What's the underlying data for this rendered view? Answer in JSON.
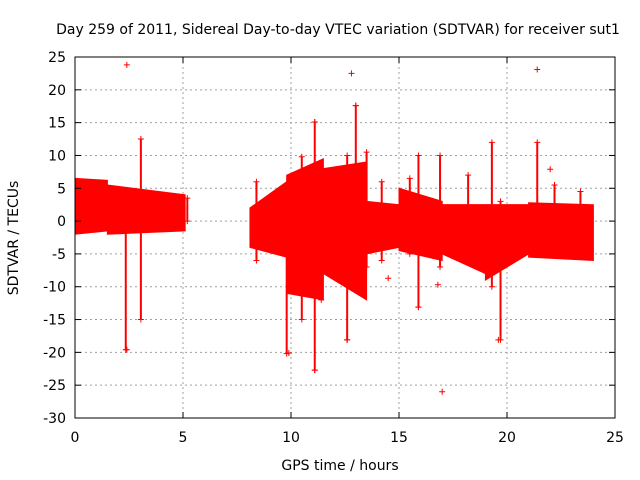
{
  "chart_data": {
    "type": "scatter",
    "title": "Day 259 of 2011, Sidereal Day-to-day VTEC variation (SDTVAR) for receiver sut1",
    "xlabel": "GPS time / hours",
    "ylabel": "SDTVAR / TECUs",
    "xlim": [
      0,
      25
    ],
    "ylim": [
      -30,
      25
    ],
    "xticks": [
      0,
      5,
      10,
      15,
      20,
      25
    ],
    "yticks": [
      25,
      20,
      15,
      10,
      5,
      0,
      -5,
      -10,
      -15,
      -20,
      -25,
      -30
    ],
    "grid": true,
    "marker": "plus",
    "color": "#ff0000",
    "outliers": [
      {
        "x": 2.4,
        "y": 23.8
      },
      {
        "x": 2.4,
        "y": -19.6
      },
      {
        "x": 12.8,
        "y": 22.5
      },
      {
        "x": 13.0,
        "y": 17.6
      },
      {
        "x": 11.1,
        "y": 15.1
      },
      {
        "x": 21.4,
        "y": 23.1
      },
      {
        "x": 17.0,
        "y": -26.0
      },
      {
        "x": 15.9,
        "y": -13.1
      },
      {
        "x": 19.6,
        "y": -18.1
      },
      {
        "x": 11.1,
        "y": -22.7
      },
      {
        "x": 9.9,
        "y": -20.1
      },
      {
        "x": 12.6,
        "y": -18.1
      },
      {
        "x": 14.5,
        "y": -8.7
      },
      {
        "x": 16.8,
        "y": -9.7
      },
      {
        "x": 22.0,
        "y": 7.9
      }
    ],
    "bands": [
      {
        "x": [
          0.0,
          1.5
        ],
        "upper": [
          6.5,
          6.2
        ],
        "lower": [
          -2.0,
          -1.5
        ]
      },
      {
        "x": [
          1.5,
          5.1
        ],
        "upper": [
          5.5,
          4.0
        ],
        "lower": [
          -2.0,
          -1.5
        ]
      },
      {
        "x": [
          8.1,
          9.8
        ],
        "upper": [
          2.0,
          6.0
        ],
        "lower": [
          -4.0,
          -5.5
        ]
      },
      {
        "x": [
          9.8,
          11.5
        ],
        "upper": [
          7.0,
          9.5
        ],
        "lower": [
          -11.0,
          -12.0
        ]
      },
      {
        "x": [
          11.5,
          13.5
        ],
        "upper": [
          8.0,
          9.0
        ],
        "lower": [
          -8.0,
          -12.0
        ]
      },
      {
        "x": [
          13.5,
          15.0
        ],
        "upper": [
          3.0,
          2.5
        ],
        "lower": [
          -5.0,
          -4.0
        ]
      },
      {
        "x": [
          15.0,
          17.0
        ],
        "upper": [
          5.0,
          3.0
        ],
        "lower": [
          -4.5,
          -6.0
        ]
      },
      {
        "x": [
          17.0,
          19.0
        ],
        "upper": [
          2.5,
          2.5
        ],
        "lower": [
          -5.0,
          -8.0
        ]
      },
      {
        "x": [
          19.0,
          21.0
        ],
        "upper": [
          2.5,
          2.5
        ],
        "lower": [
          -9.0,
          -5.0
        ]
      },
      {
        "x": [
          21.0,
          24.0
        ],
        "upper": [
          2.8,
          2.5
        ],
        "lower": [
          -5.5,
          -6.0
        ]
      }
    ],
    "spikes": [
      {
        "x": 2.35,
        "ymin": -19.6,
        "ymax": 4.0
      },
      {
        "x": 3.05,
        "ymin": -15.0,
        "ymax": 12.5
      },
      {
        "x": 5.2,
        "ymin": 0.0,
        "ymax": 3.5
      },
      {
        "x": 8.4,
        "ymin": -6.0,
        "ymax": 6.0
      },
      {
        "x": 9.8,
        "ymin": -20.2,
        "ymax": 1.0
      },
      {
        "x": 10.5,
        "ymin": -15.0,
        "ymax": 9.8
      },
      {
        "x": 11.1,
        "ymin": -22.7,
        "ymax": 15.1
      },
      {
        "x": 11.4,
        "ymin": -12.0,
        "ymax": 7.0
      },
      {
        "x": 12.6,
        "ymin": -18.1,
        "ymax": 10.0
      },
      {
        "x": 13.0,
        "ymin": -10.0,
        "ymax": 17.6
      },
      {
        "x": 13.5,
        "ymin": -7.0,
        "ymax": 10.5
      },
      {
        "x": 14.2,
        "ymin": -6.0,
        "ymax": 6.0
      },
      {
        "x": 15.5,
        "ymin": -5.0,
        "ymax": 6.5
      },
      {
        "x": 15.9,
        "ymin": -13.1,
        "ymax": 10.0
      },
      {
        "x": 16.9,
        "ymin": -7.0,
        "ymax": 10.0
      },
      {
        "x": 18.2,
        "ymin": -6.0,
        "ymax": 7.0
      },
      {
        "x": 19.3,
        "ymin": -10.0,
        "ymax": 12.0
      },
      {
        "x": 19.7,
        "ymin": -18.1,
        "ymax": 3.0
      },
      {
        "x": 21.4,
        "ymin": -4.0,
        "ymax": 12.0
      },
      {
        "x": 22.2,
        "ymin": -4.0,
        "ymax": 5.5
      },
      {
        "x": 23.4,
        "ymin": -5.0,
        "ymax": 4.5
      }
    ]
  }
}
